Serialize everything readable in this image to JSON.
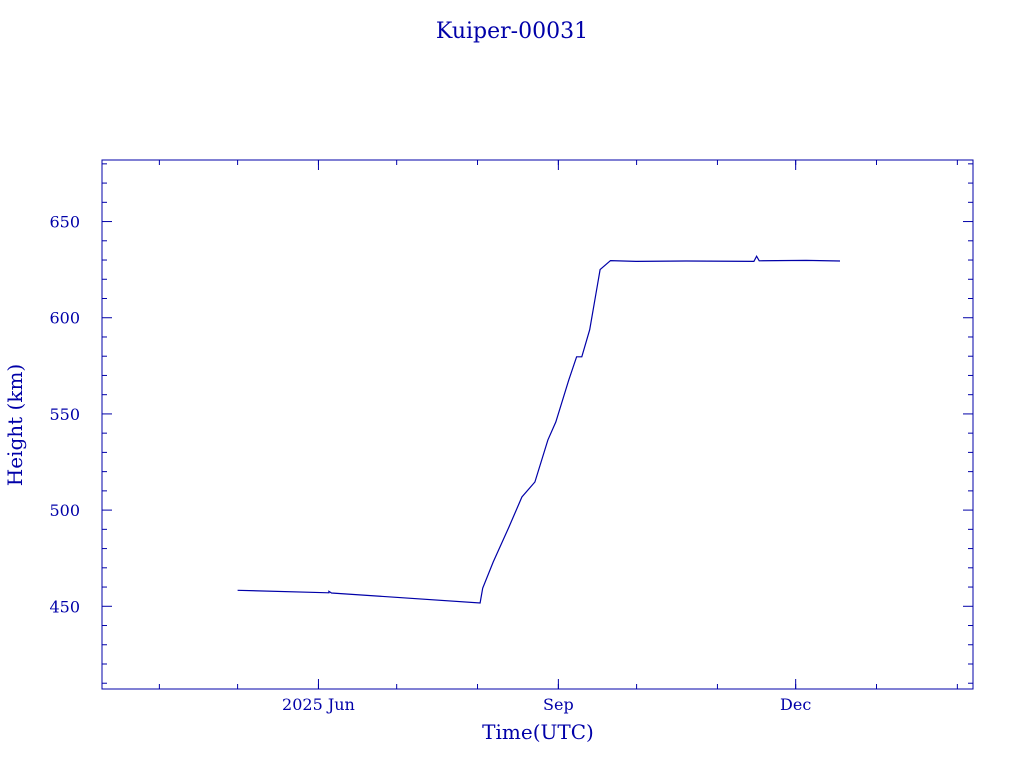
{
  "chart_data": {
    "type": "line",
    "title": "Kuiper-00031",
    "xlabel": "Time(UTC)",
    "ylabel": "Height (km)",
    "color": "#0000a8",
    "xlim": [
      "2025-03-10",
      "2026-02-07"
    ],
    "ylim": [
      407,
      682
    ],
    "grid": false,
    "x_ticks": [
      {
        "date": "2025-06-01",
        "label": "2025 Jun"
      },
      {
        "date": "2025-09-01",
        "label": "Sep"
      },
      {
        "date": "2025-12-01",
        "label": "Dec"
      }
    ],
    "x_minor_ticks": [
      "2025-04-01",
      "2025-05-01",
      "2025-06-01",
      "2025-07-01",
      "2025-08-01",
      "2025-09-01",
      "2025-10-01",
      "2025-11-01",
      "2025-12-01",
      "2026-01-01",
      "2026-02-01"
    ],
    "y_ticks": [
      450,
      500,
      550,
      600,
      650
    ],
    "y_minor_step": 10,
    "series": [
      {
        "x": [
          "2025-05-01",
          "2025-06-05",
          "2025-06-05",
          "2025-06-06",
          "2025-08-02",
          "2025-08-03",
          "2025-08-07",
          "2025-08-13",
          "2025-08-18",
          "2025-08-23",
          "2025-08-28",
          "2025-08-31",
          "2025-09-05",
          "2025-09-08",
          "2025-09-10",
          "2025-09-13",
          "2025-09-16",
          "2025-09-17",
          "2025-09-21",
          "2025-10-01",
          "2025-10-20",
          "2025-11-15",
          "2025-11-16",
          "2025-11-17",
          "2025-12-05",
          "2025-12-18"
        ],
        "y": [
          458.3,
          457.0,
          457.8,
          456.9,
          451.7,
          459.4,
          473.0,
          491.0,
          506.8,
          514.6,
          536.5,
          545.8,
          567.7,
          579.7,
          579.7,
          593.8,
          617.2,
          625.0,
          629.7,
          629.3,
          629.5,
          629.3,
          632.0,
          629.6,
          629.8,
          629.5
        ]
      }
    ]
  }
}
